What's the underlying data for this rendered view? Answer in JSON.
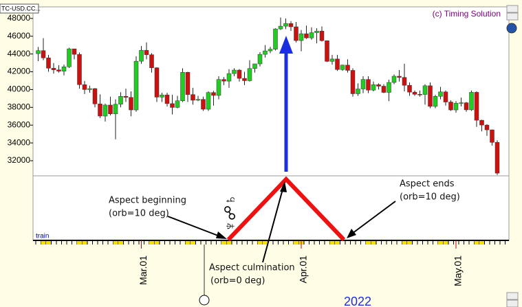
{
  "chart_data": {
    "type": "candlestick",
    "symbol": "TC-USD.CC...",
    "credit": "(c) Timing Solution",
    "year": "2022",
    "panel_label": "train",
    "aspect_glyph": "♆☍♄",
    "annotations": [
      "Aspect beginning",
      "(orb=10 deg)",
      "Aspect culmination",
      "(orb=0 deg)",
      "Aspect ends",
      "(orb=10 deg)"
    ],
    "up_color": "#22cc22",
    "down_color": "#cc1111",
    "ylim": [
      30300,
      49300
    ],
    "yticks": [
      32000,
      34000,
      36000,
      38000,
      40000,
      42000,
      44000,
      46000,
      48000
    ],
    "xlim": [
      "2022-02-08",
      "2022-05-11"
    ],
    "xticks": [
      {
        "value": "2022-03-01",
        "label": "Mar.01"
      },
      {
        "value": "2022-04-01",
        "label": "Apr.01"
      },
      {
        "value": "2022-05-01",
        "label": "May.01"
      }
    ],
    "x": [
      "2022-02-09",
      "2022-02-10",
      "2022-02-11",
      "2022-02-12",
      "2022-02-13",
      "2022-02-14",
      "2022-02-15",
      "2022-02-16",
      "2022-02-17",
      "2022-02-18",
      "2022-02-19",
      "2022-02-20",
      "2022-02-21",
      "2022-02-22",
      "2022-02-23",
      "2022-02-24",
      "2022-02-25",
      "2022-02-26",
      "2022-02-27",
      "2022-02-28",
      "2022-03-01",
      "2022-03-02",
      "2022-03-03",
      "2022-03-04",
      "2022-03-05",
      "2022-03-06",
      "2022-03-07",
      "2022-03-08",
      "2022-03-09",
      "2022-03-10",
      "2022-03-11",
      "2022-03-12",
      "2022-03-13",
      "2022-03-14",
      "2022-03-15",
      "2022-03-16",
      "2022-03-17",
      "2022-03-18",
      "2022-03-19",
      "2022-03-20",
      "2022-03-21",
      "2022-03-22",
      "2022-03-23",
      "2022-03-24",
      "2022-03-25",
      "2022-03-26",
      "2022-03-27",
      "2022-03-28",
      "2022-03-29",
      "2022-03-30",
      "2022-03-31",
      "2022-04-01",
      "2022-04-02",
      "2022-04-03",
      "2022-04-04",
      "2022-04-05",
      "2022-04-06",
      "2022-04-07",
      "2022-04-08",
      "2022-04-09",
      "2022-04-10",
      "2022-04-11",
      "2022-04-12",
      "2022-04-13",
      "2022-04-14",
      "2022-04-15",
      "2022-04-16",
      "2022-04-17",
      "2022-04-18",
      "2022-04-19",
      "2022-04-20",
      "2022-04-21",
      "2022-04-22",
      "2022-04-23",
      "2022-04-24",
      "2022-04-25",
      "2022-04-26",
      "2022-04-27",
      "2022-04-28",
      "2022-04-29",
      "2022-04-30",
      "2022-05-01",
      "2022-05-02",
      "2022-05-03",
      "2022-05-04",
      "2022-05-05",
      "2022-05-06",
      "2022-05-07",
      "2022-05-08",
      "2022-05-09"
    ],
    "open": [
      44040,
      44380,
      43560,
      42400,
      42220,
      42070,
      42560,
      44580,
      43960,
      40550,
      40000,
      40110,
      38390,
      37020,
      38260,
      37270,
      38350,
      39240,
      39120,
      37710,
      43190,
      44420,
      43920,
      42450,
      39150,
      39400,
      38420,
      37990,
      38740,
      41940,
      39440,
      38800,
      38900,
      37790,
      39670,
      39340,
      41140,
      40950,
      41800,
      42190,
      41260,
      41000,
      42370,
      42890,
      43960,
      44350,
      44540,
      46820,
      47130,
      47430,
      47060,
      45510,
      46280,
      45810,
      46400,
      46580,
      45500,
      43170,
      43440,
      42250,
      42750,
      42160,
      39530,
      40070,
      41140,
      39940,
      40550,
      40380,
      39680,
      40800,
      41500,
      41370,
      40480,
      39710,
      39470,
      39450,
      40430,
      38110,
      39240,
      39740,
      38600,
      37710,
      38470,
      38520,
      37720,
      39690,
      36550,
      36010,
      35470,
      34060
    ],
    "high": [
      44790,
      45790,
      43900,
      42990,
      42740,
      42800,
      44700,
      44580,
      44170,
      40970,
      40450,
      40170,
      39460,
      38420,
      39200,
      38900,
      39700,
      40100,
      39800,
      43750,
      44900,
      45300,
      44100,
      42500,
      39650,
      39650,
      39400,
      39300,
      42400,
      42000,
      40200,
      39300,
      39200,
      39800,
      39860,
      41500,
      41400,
      42300,
      42400,
      42300,
      42000,
      43300,
      42900,
      44200,
      45000,
      44800,
      46900,
      48100,
      48000,
      47700,
      47600,
      46700,
      47200,
      47000,
      46900,
      47100,
      45500,
      43900,
      43900,
      42800,
      43400,
      42400,
      40700,
      41500,
      41500,
      40900,
      40700,
      40600,
      41100,
      41700,
      42200,
      42900,
      40800,
      39900,
      39900,
      40600,
      40800,
      39400,
      40300,
      39900,
      38800,
      38700,
      39100,
      38600,
      39900,
      39800,
      36600,
      36100,
      35500,
      34300
    ],
    "low": [
      43200,
      43300,
      42000,
      41800,
      41900,
      41600,
      42430,
      43400,
      40100,
      39500,
      39650,
      38000,
      36800,
      36400,
      37100,
      34400,
      38000,
      38600,
      37000,
      37500,
      42900,
      43400,
      41900,
      38600,
      38600,
      38100,
      37200,
      37900,
      38600,
      38600,
      38300,
      38700,
      37600,
      37600,
      38200,
      38900,
      40500,
      40200,
      41500,
      40900,
      40500,
      40900,
      41900,
      42600,
      43600,
      44100,
      44400,
      46700,
      46800,
      46600,
      45300,
      44300,
      45700,
      45600,
      45200,
      45400,
      43100,
      42800,
      42100,
      42100,
      41900,
      39200,
      39300,
      39600,
      39600,
      39800,
      40000,
      39600,
      38700,
      40600,
      40900,
      39800,
      39300,
      39300,
      39200,
      38300,
      37900,
      37900,
      38900,
      38200,
      37600,
      37400,
      38100,
      37500,
      37600,
      35800,
      35300,
      34800,
      33700,
      30400
    ],
    "close": [
      44380,
      43560,
      42400,
      42220,
      42070,
      42560,
      44580,
      43960,
      40550,
      40000,
      40110,
      38390,
      37020,
      38260,
      37270,
      38350,
      39240,
      39120,
      37710,
      43190,
      44420,
      43920,
      42450,
      39150,
      39400,
      38420,
      37990,
      38740,
      41940,
      39440,
      38800,
      38900,
      37790,
      39670,
      39340,
      41140,
      40950,
      41800,
      42190,
      41260,
      41000,
      42370,
      42890,
      43960,
      44350,
      44540,
      46820,
      47130,
      47430,
      47060,
      45510,
      46280,
      45810,
      46400,
      46580,
      45500,
      43170,
      43440,
      42250,
      42750,
      42160,
      39530,
      40070,
      41140,
      39940,
      40550,
      40380,
      39680,
      40800,
      41500,
      41370,
      40480,
      39710,
      39470,
      39450,
      40430,
      38110,
      39240,
      39740,
      38600,
      37710,
      38470,
      38520,
      37720,
      39690,
      36550,
      36010,
      35470,
      34060,
      30600
    ]
  }
}
